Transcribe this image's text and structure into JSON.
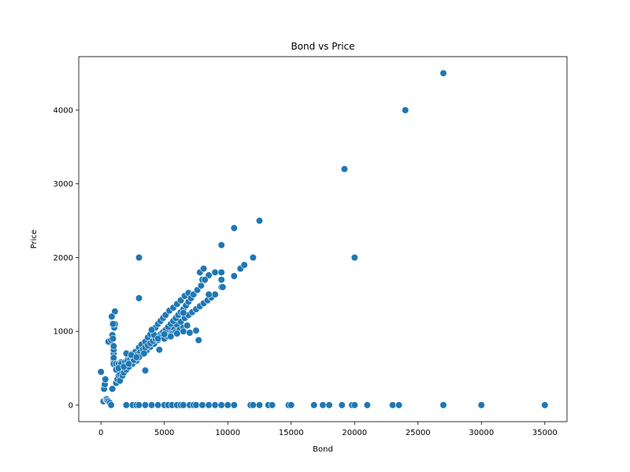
{
  "chart_data": {
    "type": "scatter",
    "title": "Bond vs Price",
    "xlabel": "Bond",
    "ylabel": "Price",
    "xlim": [
      -1750,
      36750
    ],
    "ylim": [
      -225,
      4725
    ],
    "xticks": [
      0,
      5000,
      10000,
      15000,
      20000,
      25000,
      30000,
      35000
    ],
    "yticks": [
      0,
      1000,
      2000,
      3000,
      4000
    ],
    "grid": false,
    "marker_color": "#1f77b4",
    "marker_edge": "#ffffff",
    "series": [
      {
        "x": [
          0,
          200,
          250,
          300,
          350,
          400,
          450,
          500,
          600,
          700,
          800,
          900,
          950,
          1000,
          1000,
          1000,
          1000,
          1000,
          1050,
          1100,
          1100,
          1200,
          1300,
          1400,
          1500,
          600,
          800,
          850,
          900,
          950,
          950,
          1000,
          1000,
          1000,
          1000,
          1200,
          1400,
          1600,
          1700,
          1900,
          2100,
          2400,
          2700,
          3000,
          3200,
          3500,
          3700,
          3900,
          4100,
          4300,
          4500,
          4700,
          4900,
          5100,
          5400,
          5700,
          6000,
          6300,
          6600,
          6900,
          1500,
          1700,
          1800,
          2000,
          2200,
          2500,
          2800,
          3000,
          3300,
          3600,
          3900,
          4200,
          4500,
          4800,
          5100,
          5400,
          5700,
          6000,
          6300,
          6600,
          6900,
          7200,
          7500,
          7800,
          8100,
          8400,
          8700,
          9000,
          9500,
          1600,
          1900,
          2100,
          2300,
          2500,
          2700,
          2900,
          3100,
          3300,
          3500,
          3700,
          3900,
          4100,
          4300,
          4500,
          4700,
          4900,
          5100,
          5300,
          5500,
          5700,
          5900,
          6100,
          6300,
          6500,
          6700,
          6900,
          7100,
          7300,
          7600,
          7900,
          8200,
          8500,
          4200,
          4600,
          5000,
          5300,
          5600,
          5900,
          6200,
          6500,
          6800,
          4000,
          4500,
          5000,
          5500,
          6000,
          6500,
          7000,
          7500,
          1200,
          1400,
          1800,
          2200,
          2600,
          3000,
          3400,
          2000,
          2400,
          2800,
          3000,
          3000,
          3500,
          4600,
          6500,
          7700,
          7800,
          8000,
          8100,
          8200,
          8500,
          9000,
          9500,
          9500,
          9500,
          9600,
          10500,
          10500,
          11000,
          11300,
          12000,
          12500,
          19200,
          20000,
          24000,
          27000,
          2000,
          2500,
          2800,
          3000,
          3500,
          4000,
          4500,
          5000,
          5300,
          5600,
          6000,
          6300,
          6500,
          7000,
          7300,
          7500,
          8000,
          8500,
          9000,
          9500,
          10000,
          10500,
          11800,
          12000,
          12500,
          13200,
          13500,
          14800,
          15000,
          16800,
          17500,
          18000,
          19000,
          19800,
          20000,
          21000,
          23000,
          23500,
          27000,
          30000,
          35000
        ],
        "y": [
          450,
          50,
          220,
          280,
          350,
          70,
          80,
          60,
          50,
          30,
          0,
          220,
          600,
          550,
          650,
          700,
          750,
          800,
          1050,
          1100,
          1270,
          300,
          350,
          400,
          420,
          860,
          880,
          1200,
          950,
          900,
          1100,
          600,
          620,
          640,
          560,
          560,
          560,
          580,
          560,
          540,
          620,
          690,
          720,
          780,
          820,
          860,
          920,
          960,
          1010,
          1050,
          1100,
          1140,
          1180,
          1220,
          1280,
          1320,
          1370,
          1420,
          1480,
          1520,
          330,
          400,
          440,
          480,
          520,
          560,
          600,
          650,
          690,
          740,
          790,
          830,
          880,
          920,
          960,
          1010,
          1050,
          1090,
          1130,
          1180,
          1220,
          1260,
          1300,
          1340,
          1380,
          1420,
          1460,
          1500,
          1600,
          560,
          580,
          600,
          620,
          640,
          660,
          690,
          720,
          750,
          780,
          810,
          840,
          870,
          900,
          930,
          960,
          990,
          1020,
          1060,
          1100,
          1140,
          1180,
          1220,
          1260,
          1300,
          1350,
          1400,
          1450,
          1500,
          1560,
          1620,
          1690,
          1760,
          950,
          920,
          900,
          930,
          960,
          990,
          1020,
          1050,
          1080,
          1020,
          900,
          960,
          930,
          970,
          1000,
          980,
          1010,
          480,
          500,
          520,
          560,
          610,
          650,
          700,
          700,
          680,
          650,
          2000,
          1450,
          470,
          750,
          1250,
          880,
          1800,
          1700,
          1850,
          1700,
          1500,
          1800,
          2170,
          1800,
          1700,
          1600,
          2400,
          1750,
          1850,
          1900,
          2000,
          2500,
          3200,
          2000,
          4000,
          4500,
          0,
          0,
          0,
          0,
          0,
          0,
          0,
          0,
          0,
          0,
          0,
          0,
          0,
          0,
          0,
          0,
          0,
          0,
          0,
          0,
          0,
          0,
          0,
          0,
          0,
          0,
          0,
          0,
          0,
          0,
          0,
          0,
          0,
          0,
          0,
          0,
          0,
          0,
          0,
          0,
          0
        ]
      }
    ]
  }
}
